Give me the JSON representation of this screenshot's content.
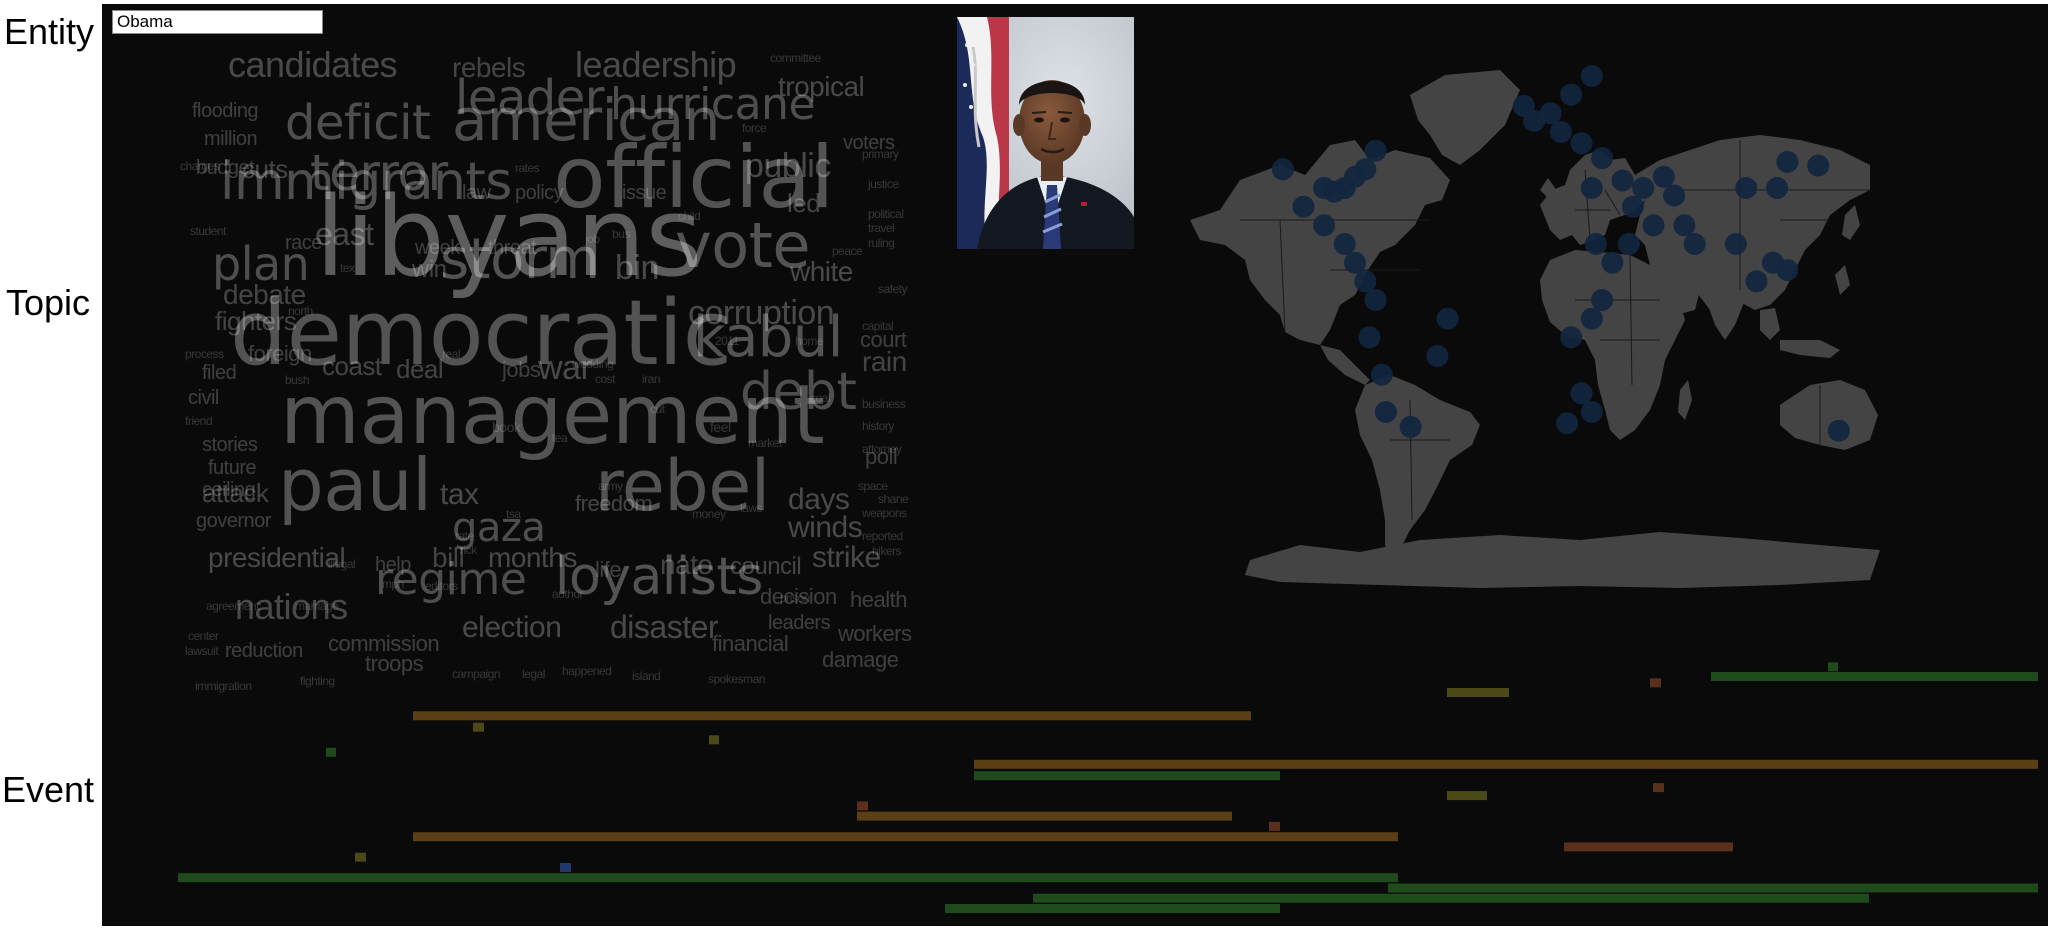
{
  "labels": {
    "entity": "Entity",
    "topic": "Topic",
    "event": "Event"
  },
  "entity_input": {
    "value": "Obama"
  },
  "portrait": {
    "subject": "barack-obama-portrait"
  },
  "colors": {
    "panel": "#0a0a0a",
    "cloud_text": "#555555",
    "land": "#444444",
    "borders": "#1a1a1a",
    "map_marker": "#12263f",
    "event_orange": "#5a3f14",
    "event_green": "#1f4a1c",
    "event_olive": "#4b4a16",
    "event_rust": "#5a2f1c",
    "event_blue": "#1f3a6a"
  },
  "word_cloud": [
    {
      "text": "libyans",
      "size": 110,
      "opacity": 0.34
    },
    {
      "text": "democratic",
      "size": 90,
      "opacity": 0.3
    },
    {
      "text": "management",
      "size": 82,
      "opacity": 0.3
    },
    {
      "text": "official",
      "size": 86,
      "opacity": 0.3
    },
    {
      "text": "american",
      "size": 58,
      "opacity": 0.28
    },
    {
      "text": "immigrants",
      "size": 52,
      "opacity": 0.28
    },
    {
      "text": "paul",
      "size": 72,
      "opacity": 0.3
    },
    {
      "text": "rebel",
      "size": 70,
      "opacity": 0.3
    },
    {
      "text": "vote",
      "size": 62,
      "opacity": 0.3
    },
    {
      "text": "storm",
      "size": 56,
      "opacity": 0.3
    },
    {
      "text": "kabul",
      "size": 56,
      "opacity": 0.3
    },
    {
      "text": "debt",
      "size": 52,
      "opacity": 0.28
    },
    {
      "text": "loyalists",
      "size": 52,
      "opacity": 0.3
    },
    {
      "text": "terror",
      "size": 50,
      "opacity": 0.28
    },
    {
      "text": "deficit",
      "size": 48,
      "opacity": 0.28
    },
    {
      "text": "leader",
      "size": 48,
      "opacity": 0.28
    },
    {
      "text": "hurricane",
      "size": 44,
      "opacity": 0.28
    },
    {
      "text": "plan",
      "size": 46,
      "opacity": 0.28
    },
    {
      "text": "regime",
      "size": 44,
      "opacity": 0.28
    },
    {
      "text": "candidates",
      "size": 36,
      "opacity": 0.26
    },
    {
      "text": "leadership",
      "size": 36,
      "opacity": 0.26
    },
    {
      "text": "corruption",
      "size": 34,
      "opacity": 0.26
    },
    {
      "text": "nations",
      "size": 36,
      "opacity": 0.26
    },
    {
      "text": "public",
      "size": 34,
      "opacity": 0.26
    },
    {
      "text": "gaza",
      "size": 40,
      "opacity": 0.28
    },
    {
      "text": "war",
      "size": 34,
      "opacity": 0.26
    },
    {
      "text": "presidential",
      "size": 28,
      "opacity": 0.26
    },
    {
      "text": "east",
      "size": 32,
      "opacity": 0.26
    },
    {
      "text": "bin",
      "size": 34,
      "opacity": 0.26
    },
    {
      "text": "white",
      "size": 28,
      "opacity": 0.26
    },
    {
      "text": "tropical",
      "size": 28,
      "opacity": 0.26
    },
    {
      "text": "rebels",
      "size": 28,
      "opacity": 0.24
    },
    {
      "text": "led",
      "size": 26,
      "opacity": 0.24
    },
    {
      "text": "disaster",
      "size": 32,
      "opacity": 0.26
    },
    {
      "text": "election",
      "size": 30,
      "opacity": 0.26
    },
    {
      "text": "days",
      "size": 30,
      "opacity": 0.26
    },
    {
      "text": "winds",
      "size": 30,
      "opacity": 0.26
    },
    {
      "text": "strike",
      "size": 30,
      "opacity": 0.26
    },
    {
      "text": "tax",
      "size": 30,
      "opacity": 0.26
    },
    {
      "text": "months",
      "size": 28,
      "opacity": 0.26
    },
    {
      "text": "debate",
      "size": 28,
      "opacity": 0.24
    },
    {
      "text": "fighters",
      "size": 26,
      "opacity": 0.24
    },
    {
      "text": "coast",
      "size": 26,
      "opacity": 0.24
    },
    {
      "text": "deal",
      "size": 26,
      "opacity": 0.24
    },
    {
      "text": "cuts",
      "size": 26,
      "opacity": 0.24
    },
    {
      "text": "rain",
      "size": 28,
      "opacity": 0.24
    },
    {
      "text": "attack",
      "size": 26,
      "opacity": 0.24
    },
    {
      "text": "bill",
      "size": 28,
      "opacity": 0.24
    },
    {
      "text": "nato",
      "size": 28,
      "opacity": 0.24
    },
    {
      "text": "council",
      "size": 24,
      "opacity": 0.24
    },
    {
      "text": "freedom",
      "size": 22,
      "opacity": 0.24
    },
    {
      "text": "win",
      "size": 24,
      "opacity": 0.24
    },
    {
      "text": "jobs",
      "size": 22,
      "opacity": 0.22
    },
    {
      "text": "foreign",
      "size": 22,
      "opacity": 0.22
    },
    {
      "text": "court",
      "size": 22,
      "opacity": 0.22
    },
    {
      "text": "voters",
      "size": 20,
      "opacity": 0.22
    },
    {
      "text": "flooding",
      "size": 20,
      "opacity": 0.22
    },
    {
      "text": "million",
      "size": 20,
      "opacity": 0.22
    },
    {
      "text": "budget",
      "size": 20,
      "opacity": 0.22
    },
    {
      "text": "policy",
      "size": 20,
      "opacity": 0.22
    },
    {
      "text": "issue",
      "size": 20,
      "opacity": 0.22
    },
    {
      "text": "law",
      "size": 20,
      "opacity": 0.22
    },
    {
      "text": "week",
      "size": 20,
      "opacity": 0.22
    },
    {
      "text": "threat",
      "size": 20,
      "opacity": 0.22
    },
    {
      "text": "race",
      "size": 20,
      "opacity": 0.22
    },
    {
      "text": "civil",
      "size": 20,
      "opacity": 0.22
    },
    {
      "text": "filed",
      "size": 20,
      "opacity": 0.22
    },
    {
      "text": "stories",
      "size": 20,
      "opacity": 0.22
    },
    {
      "text": "future",
      "size": 20,
      "opacity": 0.22
    },
    {
      "text": "ceiling",
      "size": 20,
      "opacity": 0.22
    },
    {
      "text": "governor",
      "size": 20,
      "opacity": 0.22
    },
    {
      "text": "poll",
      "size": 22,
      "opacity": 0.22
    },
    {
      "text": "help",
      "size": 20,
      "opacity": 0.22
    },
    {
      "text": "life",
      "size": 22,
      "opacity": 0.22
    },
    {
      "text": "decision",
      "size": 22,
      "opacity": 0.22
    },
    {
      "text": "health",
      "size": 22,
      "opacity": 0.22
    },
    {
      "text": "leaders",
      "size": 20,
      "opacity": 0.22
    },
    {
      "text": "workers",
      "size": 22,
      "opacity": 0.22
    },
    {
      "text": "financial",
      "size": 22,
      "opacity": 0.22
    },
    {
      "text": "damage",
      "size": 22,
      "opacity": 0.22
    },
    {
      "text": "commission",
      "size": 22,
      "opacity": 0.22
    },
    {
      "text": "reduction",
      "size": 20,
      "opacity": 0.22
    },
    {
      "text": "troops",
      "size": 22,
      "opacity": 0.22
    },
    {
      "text": "committee",
      "size": 12,
      "opacity": 0.18
    },
    {
      "text": "force",
      "size": 12,
      "opacity": 0.18
    },
    {
      "text": "primary",
      "size": 12,
      "opacity": 0.18
    },
    {
      "text": "rates",
      "size": 12,
      "opacity": 0.18
    },
    {
      "text": "charges",
      "size": 12,
      "opacity": 0.18
    },
    {
      "text": "justice",
      "size": 12,
      "opacity": 0.18
    },
    {
      "text": "political",
      "size": 12,
      "opacity": 0.18
    },
    {
      "text": "child",
      "size": 12,
      "opacity": 0.18
    },
    {
      "text": "travel",
      "size": 12,
      "opacity": 0.18
    },
    {
      "text": "student",
      "size": 12,
      "opacity": 0.18
    },
    {
      "text": "bus",
      "size": 12,
      "opacity": 0.18
    },
    {
      "text": "job",
      "size": 12,
      "opacity": 0.18
    },
    {
      "text": "ruling",
      "size": 12,
      "opacity": 0.18
    },
    {
      "text": "peace",
      "size": 12,
      "opacity": 0.18
    },
    {
      "text": "tex",
      "size": 12,
      "opacity": 0.18
    },
    {
      "text": "safety",
      "size": 12,
      "opacity": 0.18
    },
    {
      "text": "north",
      "size": 12,
      "opacity": 0.18
    },
    {
      "text": "capital",
      "size": 12,
      "opacity": 0.18
    },
    {
      "text": "2011",
      "size": 12,
      "opacity": 0.18
    },
    {
      "text": "home",
      "size": 12,
      "opacity": 0.18
    },
    {
      "text": "process",
      "size": 12,
      "opacity": 0.18
    },
    {
      "text": "real",
      "size": 12,
      "opacity": 0.18
    },
    {
      "text": "wedding",
      "size": 12,
      "opacity": 0.18
    },
    {
      "text": "bush",
      "size": 12,
      "opacity": 0.18
    },
    {
      "text": "cost",
      "size": 12,
      "opacity": 0.18
    },
    {
      "text": "iran",
      "size": 12,
      "opacity": 0.18
    },
    {
      "text": "coal",
      "size": 12,
      "opacity": 0.18
    },
    {
      "text": "business",
      "size": 12,
      "opacity": 0.18
    },
    {
      "text": "cut",
      "size": 12,
      "opacity": 0.18
    },
    {
      "text": "friend",
      "size": 12,
      "opacity": 0.18
    },
    {
      "text": "book",
      "size": 14,
      "opacity": 0.18
    },
    {
      "text": "feel",
      "size": 14,
      "opacity": 0.18
    },
    {
      "text": "history",
      "size": 12,
      "opacity": 0.18
    },
    {
      "text": "tea",
      "size": 12,
      "opacity": 0.18
    },
    {
      "text": "market",
      "size": 12,
      "opacity": 0.18
    },
    {
      "text": "attorney",
      "size": 12,
      "opacity": 0.18
    },
    {
      "text": "army",
      "size": 12,
      "opacity": 0.18
    },
    {
      "text": "space",
      "size": 12,
      "opacity": 0.18
    },
    {
      "text": "shane",
      "size": 12,
      "opacity": 0.18
    },
    {
      "text": "weapons",
      "size": 12,
      "opacity": 0.18
    },
    {
      "text": "tsa",
      "size": 12,
      "opacity": 0.18
    },
    {
      "text": "money",
      "size": 12,
      "opacity": 0.18
    },
    {
      "text": "laws",
      "size": 12,
      "opacity": 0.18
    },
    {
      "text": "rate",
      "size": 12,
      "opacity": 0.18
    },
    {
      "text": "rick",
      "size": 12,
      "opacity": 0.18
    },
    {
      "text": "reported",
      "size": 12,
      "opacity": 0.18
    },
    {
      "text": "hikers",
      "size": 12,
      "opacity": 0.18
    },
    {
      "text": "illegal",
      "size": 12,
      "opacity": 0.18
    },
    {
      "text": "mph",
      "size": 12,
      "opacity": 0.18
    },
    {
      "text": "editors",
      "size": 12,
      "opacity": 0.18
    },
    {
      "text": "author",
      "size": 12,
      "opacity": 0.18
    },
    {
      "text": "prison",
      "size": 12,
      "opacity": 0.18
    },
    {
      "text": "agreement",
      "size": 12,
      "opacity": 0.18
    },
    {
      "text": "marriage",
      "size": 12,
      "opacity": 0.18
    },
    {
      "text": "center",
      "size": 12,
      "opacity": 0.18
    },
    {
      "text": "lawsuit",
      "size": 12,
      "opacity": 0.18
    },
    {
      "text": "campaign",
      "size": 12,
      "opacity": 0.18
    },
    {
      "text": "legal",
      "size": 12,
      "opacity": 0.18
    },
    {
      "text": "happened",
      "size": 12,
      "opacity": 0.18
    },
    {
      "text": "island",
      "size": 12,
      "opacity": 0.18
    },
    {
      "text": "spokesman",
      "size": 12,
      "opacity": 0.18
    },
    {
      "text": "immigration",
      "size": 12,
      "opacity": 0.18
    },
    {
      "text": "fighting",
      "size": 12,
      "opacity": 0.18
    }
  ],
  "map_markers": [
    [
      -100,
      30
    ],
    [
      -95,
      29
    ],
    [
      -90,
      30
    ],
    [
      -85,
      33
    ],
    [
      -80,
      35
    ],
    [
      -75,
      40
    ],
    [
      -120,
      35
    ],
    [
      -110,
      25
    ],
    [
      -100,
      20
    ],
    [
      -90,
      15
    ],
    [
      -85,
      10
    ],
    [
      -80,
      5
    ],
    [
      -75,
      0
    ],
    [
      -78,
      -10
    ],
    [
      -72,
      -20
    ],
    [
      -70,
      -30
    ],
    [
      -58,
      -34
    ],
    [
      -45,
      -15
    ],
    [
      -40,
      -5
    ],
    [
      -3,
      52
    ],
    [
      2,
      48
    ],
    [
      10,
      50
    ],
    [
      15,
      45
    ],
    [
      20,
      55
    ],
    [
      30,
      60
    ],
    [
      25,
      42
    ],
    [
      35,
      38
    ],
    [
      30,
      30
    ],
    [
      45,
      32
    ],
    [
      50,
      25
    ],
    [
      55,
      30
    ],
    [
      65,
      33
    ],
    [
      70,
      28
    ],
    [
      75,
      20
    ],
    [
      80,
      15
    ],
    [
      60,
      20
    ],
    [
      48,
      15
    ],
    [
      40,
      10
    ],
    [
      32,
      15
    ],
    [
      35,
      0
    ],
    [
      30,
      -5
    ],
    [
      20,
      -10
    ],
    [
      25,
      -25
    ],
    [
      30,
      -30
    ],
    [
      18,
      -33
    ],
    [
      100,
      15
    ],
    [
      105,
      30
    ],
    [
      120,
      30
    ],
    [
      125,
      37
    ],
    [
      140,
      36
    ],
    [
      118,
      10
    ],
    [
      110,
      5
    ],
    [
      125,
      8
    ],
    [
      150,
      -35
    ]
  ],
  "events": [
    {
      "start": 1711,
      "end": 2038,
      "lane": 0,
      "color": "event_green"
    },
    {
      "start": 1828,
      "end": 1838,
      "lane": -0.85,
      "color": "event_green"
    },
    {
      "start": 1650,
      "end": 1661,
      "lane": 0.55,
      "color": "event_rust"
    },
    {
      "start": 1447,
      "end": 1509,
      "lane": 1.4,
      "color": "event_olive"
    },
    {
      "start": 413,
      "end": 1251,
      "lane": 3.45,
      "color": "event_orange"
    },
    {
      "start": 473,
      "end": 484,
      "lane": 4.45,
      "color": "event_olive"
    },
    {
      "start": 709,
      "end": 719,
      "lane": 5.55,
      "color": "event_olive"
    },
    {
      "start": 326,
      "end": 336,
      "lane": 6.65,
      "color": "event_green"
    },
    {
      "start": 974,
      "end": 2038,
      "lane": 7.7,
      "color": "event_orange"
    },
    {
      "start": 974,
      "end": 1280,
      "lane": 8.7,
      "color": "event_green"
    },
    {
      "start": 1653,
      "end": 1664,
      "lane": 9.75,
      "color": "event_rust"
    },
    {
      "start": 1447,
      "end": 1487,
      "lane": 10.45,
      "color": "event_olive"
    },
    {
      "start": 857,
      "end": 868,
      "lane": 11.35,
      "color": "event_rust"
    },
    {
      "start": 857,
      "end": 1232,
      "lane": 12.25,
      "color": "event_orange"
    },
    {
      "start": 1269,
      "end": 1280,
      "lane": 13.15,
      "color": "event_rust"
    },
    {
      "start": 413,
      "end": 1398,
      "lane": 14.05,
      "color": "event_orange"
    },
    {
      "start": 1564,
      "end": 1733,
      "lane": 14.95,
      "color": "event_rust"
    },
    {
      "start": 355,
      "end": 366,
      "lane": 15.85,
      "color": "event_olive"
    },
    {
      "start": 560,
      "end": 571,
      "lane": 16.75,
      "color": "event_blue"
    },
    {
      "start": 178,
      "end": 1398,
      "lane": 17.65,
      "color": "event_green"
    },
    {
      "start": 1388,
      "end": 2038,
      "lane": 18.55,
      "color": "event_green"
    },
    {
      "start": 1033,
      "end": 1869,
      "lane": 19.45,
      "color": "event_green"
    },
    {
      "start": 945,
      "end": 1280,
      "lane": 20.35,
      "color": "event_green"
    }
  ]
}
